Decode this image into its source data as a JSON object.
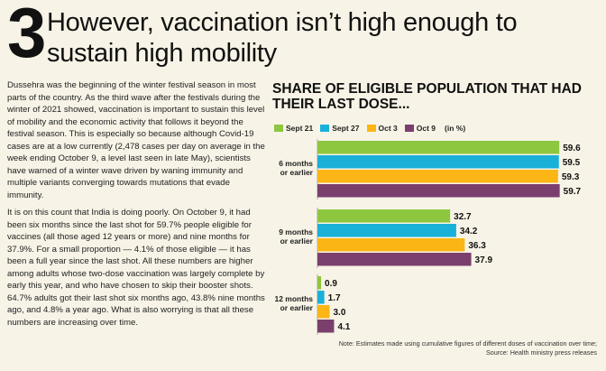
{
  "headline": {
    "number": "3",
    "title": "However, vaccination isn’t high enough to sustain high mobility"
  },
  "body": {
    "paragraphs": [
      "Dussehra was the beginning of the winter festival season in most parts of the country. As the third wave after the festivals during the winter of 2021 showed, vaccination is important to sustain this level of mobility and the economic activity that follows it beyond the festival season. This is especially so because although Covid-19 cases are at a low currently (2,478 cases per day on average in the week ending October 9, a level last seen in late May), scientists have warned of a winter wave driven by waning immunity and multiple variants converging towards mutations that evade immunity.",
      "It is on this count that India is doing poorly. On October 9, it had been six months since the last shot for 59.7% people eligible for vaccines (all those aged 12 years or more) and nine months for 37.9%. For a small proportion — 4.1% of those eligible — it has been a full year since the last shot. All these numbers are higher among adults whose two-dose vaccination was largely complete by early this year, and who have chosen to skip their booster shots. 64.7% adults got their last shot six months ago, 43.8% nine months ago, and 4.8% a year ago. What is also worrying is that all these numbers are increasing over time."
    ]
  },
  "chart_data": {
    "type": "bar",
    "orientation": "horizontal",
    "title": "SHARE OF ELIGIBLE POPULATION THAT HAD THEIR LAST DOSE...",
    "unit_label": "(in %)",
    "categories": [
      "6 months or earlier",
      "9 months or earlier",
      "12 months or earlier"
    ],
    "series": [
      {
        "name": "Sept 21",
        "color": "#8dc63f",
        "values": [
          59.6,
          32.7,
          0.9
        ]
      },
      {
        "name": "Sept 27",
        "color": "#1ab0d8",
        "values": [
          59.5,
          34.2,
          1.7
        ]
      },
      {
        "name": "Oct 3",
        "color": "#fbb616",
        "values": [
          59.3,
          36.3,
          3.0
        ]
      },
      {
        "name": "Oct 9",
        "color": "#7b3f6e",
        "values": [
          59.7,
          37.9,
          4.1
        ]
      }
    ],
    "value_labels": [
      [
        "59.6",
        "32.7",
        "0.9"
      ],
      [
        "59.5",
        "34.2",
        "1.7"
      ],
      [
        "59.3",
        "36.3",
        "3.0"
      ],
      [
        "59.7",
        "37.9",
        "4.1"
      ]
    ],
    "category_lines": [
      [
        "6 months",
        "or earlier"
      ],
      [
        "9 months",
        "or earlier"
      ],
      [
        "12 months",
        "or earlier"
      ]
    ],
    "xlim": [
      0,
      60
    ],
    "grid": false,
    "legend_position": "top-left"
  },
  "note": {
    "line1": "Note: Estimates made using cumulative figures of different doses of vaccination over time;",
    "line2": "Source: Health ministry press releases"
  }
}
